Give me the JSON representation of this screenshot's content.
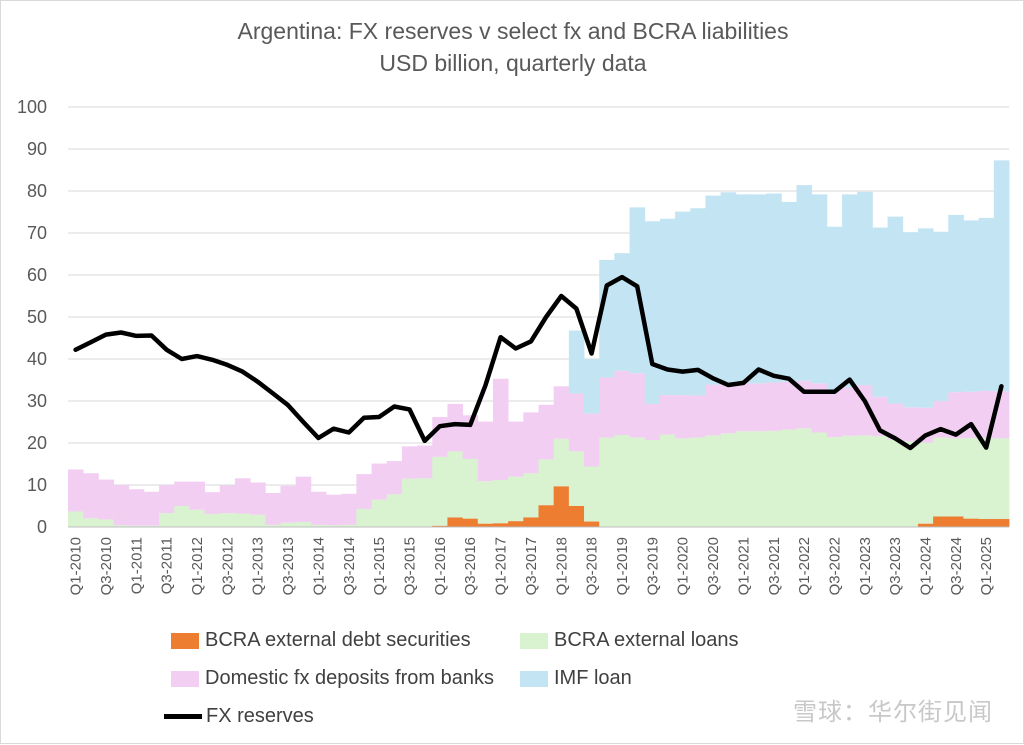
{
  "title": "Argentina: FX reserves v select fx and BCRA liabilities",
  "subtitle": "USD billion, quarterly data",
  "watermark": "雪球：华尔街见闻",
  "colors": {
    "debt": "#ed7d31",
    "loans": "#d9f2d0",
    "deposits": "#f2cff2",
    "imf": "#c3e4f3",
    "reserves": "#000000"
  },
  "legend": [
    {
      "key": "debt",
      "label": "BCRA external debt securities"
    },
    {
      "key": "loans",
      "label": "BCRA external loans"
    },
    {
      "key": "deposits",
      "label": "Domestic fx deposits from banks"
    },
    {
      "key": "imf",
      "label": "IMF loan"
    },
    {
      "key": "reserves",
      "label": "FX reserves"
    }
  ],
  "chart_data": {
    "type": "bar",
    "stacked": true,
    "ylim": [
      0,
      100
    ],
    "yticks": [
      0,
      10,
      20,
      30,
      40,
      50,
      60,
      70,
      80,
      90,
      100
    ],
    "xticklabels": [
      "Q1-2010",
      "Q3-2010",
      "Q1-2011",
      "Q3-2011",
      "Q1-2012",
      "Q3-2012",
      "Q1-2013",
      "Q3-2013",
      "Q1-2014",
      "Q3-2014",
      "Q1-2015",
      "Q3-2015",
      "Q1-2016",
      "Q3-2016",
      "Q1-2017",
      "Q3-2017",
      "Q1-2018",
      "Q3-2018",
      "Q1-2019",
      "Q3-2019",
      "Q1-2020",
      "Q3-2020",
      "Q1-2021",
      "Q3-2021",
      "Q1-2022",
      "Q3-2022",
      "Q1-2023",
      "Q3-2023",
      "Q1-2024",
      "Q3-2024",
      "Q1-2025"
    ],
    "categories": [
      "Q1-2010",
      "Q2-2010",
      "Q3-2010",
      "Q4-2010",
      "Q1-2011",
      "Q2-2011",
      "Q3-2011",
      "Q4-2011",
      "Q1-2012",
      "Q2-2012",
      "Q3-2012",
      "Q4-2012",
      "Q1-2013",
      "Q2-2013",
      "Q3-2013",
      "Q4-2013",
      "Q1-2014",
      "Q2-2014",
      "Q3-2014",
      "Q4-2014",
      "Q1-2015",
      "Q2-2015",
      "Q3-2015",
      "Q4-2015",
      "Q1-2016",
      "Q2-2016",
      "Q3-2016",
      "Q4-2016",
      "Q1-2017",
      "Q2-2017",
      "Q3-2017",
      "Q4-2017",
      "Q1-2018",
      "Q2-2018",
      "Q3-2018",
      "Q4-2018",
      "Q1-2019",
      "Q2-2019",
      "Q3-2019",
      "Q4-2019",
      "Q1-2020",
      "Q2-2020",
      "Q3-2020",
      "Q4-2020",
      "Q1-2021",
      "Q2-2021",
      "Q3-2021",
      "Q4-2021",
      "Q1-2022",
      "Q2-2022",
      "Q3-2022",
      "Q4-2022",
      "Q1-2023",
      "Q2-2023",
      "Q3-2023",
      "Q4-2023",
      "Q1-2024",
      "Q2-2024",
      "Q3-2024",
      "Q4-2024",
      "Q1-2025",
      "Q2-2025"
    ],
    "series": [
      {
        "name": "BCRA external debt securities",
        "key": "debt",
        "values": [
          0,
          0,
          0,
          0,
          0,
          0,
          0,
          0,
          0,
          0,
          0,
          0,
          0,
          0,
          0,
          0,
          0,
          0,
          0,
          0,
          0,
          0,
          0,
          0,
          0.3,
          2.3,
          2.0,
          0.8,
          0.9,
          1.4,
          2.3,
          5.2,
          9.7,
          5.0,
          1.3,
          0,
          0,
          0,
          0,
          0,
          0,
          0,
          0,
          0,
          0,
          0,
          0,
          0,
          0,
          0,
          0,
          0,
          0,
          0,
          0,
          0,
          0.8,
          2.5,
          2.5,
          2.0,
          1.9,
          1.9
        ]
      },
      {
        "name": "BCRA external loans",
        "key": "loans",
        "values": [
          3.7,
          2.1,
          1.8,
          0.4,
          0.3,
          0.3,
          3.3,
          5.0,
          4.1,
          3.1,
          3.3,
          3.2,
          2.9,
          0.5,
          1.0,
          1.2,
          0.5,
          0.4,
          0.5,
          4.3,
          6.5,
          7.8,
          11.5,
          11.6,
          16.4,
          15.7,
          14.2,
          10.1,
          10.3,
          10.6,
          10.5,
          10.9,
          11.3,
          13.0,
          13.1,
          21.3,
          21.9,
          21.3,
          20.7,
          22.0,
          21.1,
          21.3,
          21.8,
          22.3,
          22.8,
          22.8,
          22.9,
          23.2,
          23.5,
          22.5,
          21.4,
          21.7,
          21.8,
          21.6,
          20.8,
          20.4,
          19.3,
          18.8,
          18.6,
          19.2,
          19.3,
          19.2
        ]
      },
      {
        "name": "Domestic fx deposits from banks",
        "key": "deposits",
        "values": [
          10.0,
          10.7,
          9.5,
          9.6,
          8.7,
          8.1,
          6.7,
          5.8,
          6.7,
          5.2,
          6.6,
          8.4,
          7.7,
          7.6,
          8.8,
          10.8,
          7.9,
          7.3,
          7.4,
          8.3,
          8.6,
          7.9,
          7.7,
          7.8,
          9.5,
          11.3,
          10.4,
          14.2,
          24.1,
          13.1,
          14.5,
          13.0,
          12.5,
          13.8,
          12.6,
          14.3,
          15.3,
          15.3,
          8.6,
          9.4,
          10.3,
          10.0,
          12.1,
          11.7,
          11.4,
          11.4,
          11.5,
          11.4,
          11.3,
          11.7,
          11.1,
          11.5,
          12.0,
          9.4,
          8.6,
          8.1,
          8.3,
          8.7,
          11.0,
          11.0,
          11.2,
          11.2
        ]
      },
      {
        "name": "IMF loan",
        "key": "imf",
        "values": [
          0,
          0,
          0,
          0,
          0,
          0,
          0,
          0,
          0,
          0,
          0,
          0,
          0,
          0,
          0,
          0,
          0,
          0,
          0,
          0,
          0,
          0,
          0,
          0,
          0,
          0,
          0,
          0,
          0,
          0,
          0,
          0,
          0,
          15.0,
          13.0,
          28.0,
          28.0,
          39.5,
          43.5,
          42.0,
          43.7,
          44.6,
          45.0,
          45.7,
          45.0,
          45.0,
          45.0,
          42.8,
          46.6,
          45.0,
          39.0,
          46.0,
          46.0,
          40.3,
          44.5,
          41.7,
          42.7,
          40.3,
          42.2,
          40.8,
          41.2,
          55.0
        ]
      },
      {
        "name": "FX reserves",
        "key": "reserves",
        "type": "line",
        "values": [
          42.2,
          44.0,
          45.8,
          46.3,
          45.5,
          45.6,
          42.2,
          40.0,
          40.7,
          39.8,
          38.6,
          37.0,
          34.6,
          31.8,
          29.0,
          25.0,
          21.2,
          23.4,
          22.5,
          26.0,
          26.2,
          28.7,
          28.0,
          20.5,
          24.0,
          24.5,
          24.3,
          33.7,
          45.2,
          42.5,
          44.2,
          50.0,
          55.0,
          52.0,
          41.3,
          57.5,
          59.5,
          57.3,
          38.8,
          37.5,
          37.0,
          37.4,
          35.4,
          33.8,
          34.3,
          37.5,
          36.0,
          35.3,
          32.2,
          32.2,
          32.2,
          35.1,
          30.0,
          23.0,
          21.1,
          18.8,
          21.8,
          23.3,
          22.0,
          24.5,
          18.9,
          33.5
        ]
      }
    ]
  }
}
